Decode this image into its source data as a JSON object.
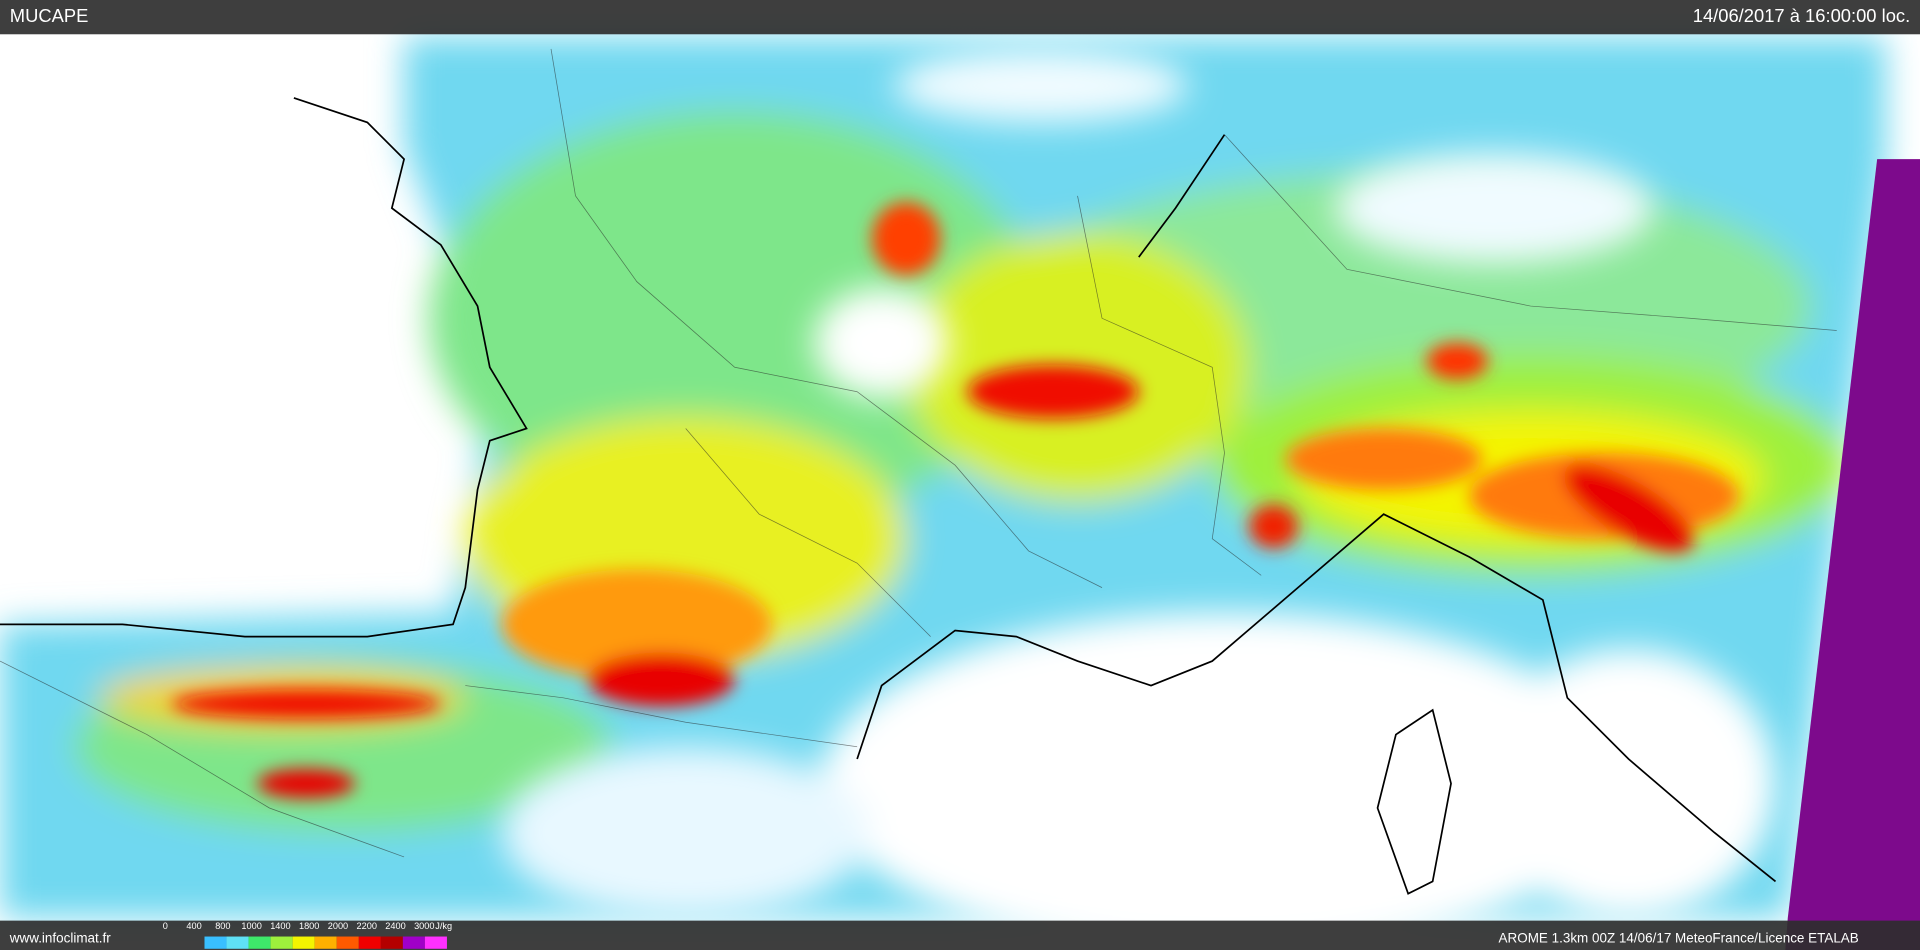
{
  "header": {
    "title": "MUCAPE",
    "timestamp": "14/06/2017 à 16:00:00 loc."
  },
  "footer": {
    "site": "www.infoclimat.fr",
    "credits": "AROME 1.3km 00Z 14/06/17 MeteoFrance/Licence ETALAB"
  },
  "legend": {
    "labels": [
      0,
      400,
      800,
      1000,
      1400,
      1800,
      2000,
      2200,
      2400,
      3000
    ],
    "unit": "J/kg",
    "colors": [
      "#39bfff",
      "#5fe0f5",
      "#3ee86a",
      "#9ef03c",
      "#f4f400",
      "#ffb000",
      "#ff5a00",
      "#f00000",
      "#b40000",
      "#a000c8",
      "#ff30ff"
    ]
  }
}
